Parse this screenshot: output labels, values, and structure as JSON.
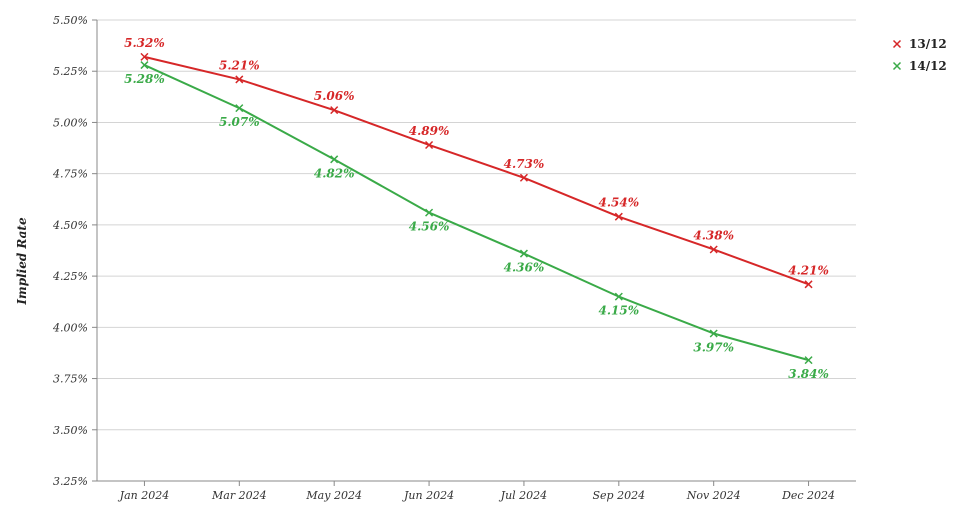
{
  "chart_data": {
    "type": "line",
    "categories": [
      "Jan 2024",
      "Mar 2024",
      "May 2024",
      "Jun 2024",
      "Jul 2024",
      "Sep 2024",
      "Nov 2024",
      "Dec 2024"
    ],
    "series": [
      {
        "name": "13/12",
        "color": "#d62728",
        "values": [
          5.32,
          5.21,
          5.06,
          4.89,
          4.73,
          4.54,
          4.38,
          4.21
        ],
        "labels": [
          "5.32%",
          "5.21%",
          "5.06%",
          "4.89%",
          "4.73%",
          "4.54%",
          "4.38%",
          "4.21%"
        ]
      },
      {
        "name": "14/12",
        "color": "#3aaa48",
        "values": [
          5.28,
          5.07,
          4.82,
          4.56,
          4.36,
          4.15,
          3.97,
          3.84
        ],
        "labels": [
          "5.28%",
          "5.07%",
          "4.82%",
          "4.56%",
          "4.36%",
          "4.15%",
          "3.97%",
          "3.84%"
        ]
      }
    ],
    "ylabel": "Implied Rate",
    "xlabel": "",
    "ylim": [
      3.25,
      5.5
    ],
    "yticks": [
      "3.25%",
      "3.50%",
      "3.75%",
      "4.00%",
      "4.25%",
      "4.50%",
      "4.75%",
      "5.00%",
      "5.25%",
      "5.50%"
    ],
    "grid": true,
    "legend_position": "top-right",
    "marker": "x"
  }
}
